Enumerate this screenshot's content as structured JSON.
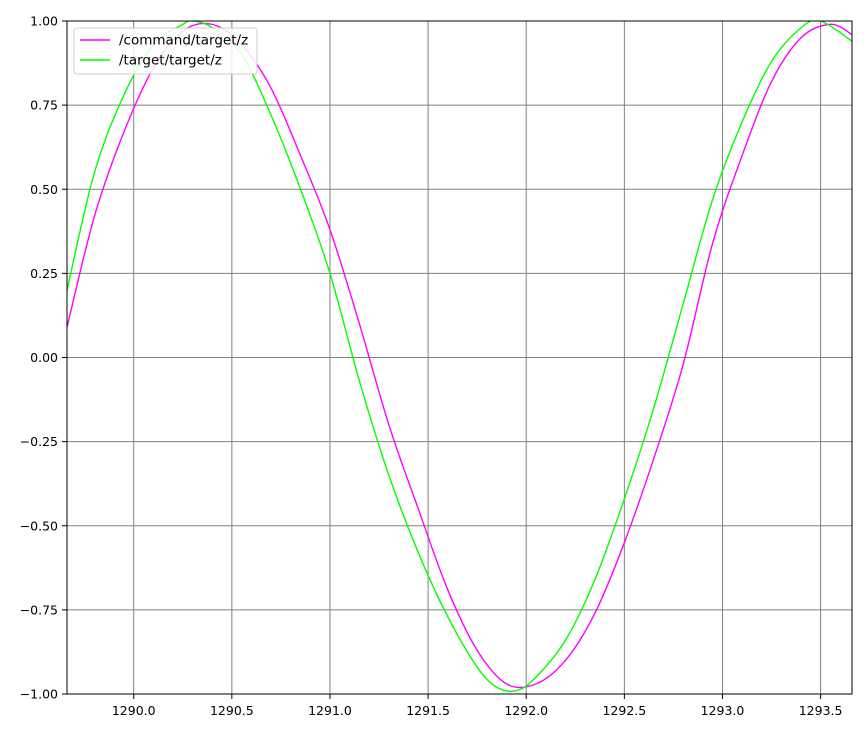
{
  "chart_data": {
    "type": "line",
    "title": "",
    "xlabel": "",
    "ylabel": "",
    "xlim": [
      1289.66,
      1293.66
    ],
    "ylim": [
      -1.0,
      1.0
    ],
    "grid": true,
    "grid_color": "#808080",
    "legend_position": "top-left",
    "x_ticks": [
      "1290.0",
      "1290.5",
      "1291.0",
      "1291.5",
      "1292.0",
      "1292.5",
      "1293.0",
      "1293.5"
    ],
    "x_tick_values": [
      1290.0,
      1290.5,
      1291.0,
      1291.5,
      1292.0,
      1292.5,
      1293.0,
      1293.5
    ],
    "y_ticks": [
      "1.00",
      "0.75",
      "0.50",
      "0.25",
      "0.00",
      "−0.25",
      "−0.50",
      "−0.75",
      "−1.00"
    ],
    "y_tick_values": [
      1.0,
      0.75,
      0.5,
      0.25,
      0.0,
      -0.25,
      -0.5,
      -0.75,
      -1.0
    ],
    "series": [
      {
        "name": "/command/target/z",
        "color": "#ff00ff",
        "x": [
          1289.66,
          1289.8,
          1289.95,
          1290.1,
          1290.25,
          1290.4,
          1290.55,
          1290.7,
          1290.85,
          1291.0,
          1291.15,
          1291.3,
          1291.45,
          1291.6,
          1291.75,
          1291.9,
          1292.05,
          1292.2,
          1292.35,
          1292.5,
          1292.65,
          1292.8,
          1292.95,
          1293.1,
          1293.25,
          1293.4,
          1293.55,
          1293.66
        ],
        "y": [
          0.09,
          0.42,
          0.67,
          0.86,
          0.97,
          0.99,
          0.93,
          0.8,
          0.6,
          0.38,
          0.1,
          -0.2,
          -0.45,
          -0.69,
          -0.87,
          -0.97,
          -0.97,
          -0.9,
          -0.76,
          -0.55,
          -0.3,
          -0.02,
          0.34,
          0.6,
          0.82,
          0.95,
          0.99,
          0.96
        ]
      },
      {
        "name": "/target/target/z",
        "color": "#00ff00",
        "x": [
          1289.66,
          1289.8,
          1289.95,
          1290.1,
          1290.25,
          1290.3,
          1290.4,
          1290.55,
          1290.7,
          1290.85,
          1291.0,
          1291.15,
          1291.3,
          1291.45,
          1291.6,
          1291.75,
          1291.85,
          1291.95,
          1292.05,
          1292.2,
          1292.35,
          1292.5,
          1292.65,
          1292.8,
          1292.95,
          1293.1,
          1293.25,
          1293.4,
          1293.5,
          1293.66
        ],
        "y": [
          0.2,
          0.55,
          0.78,
          0.93,
          0.99,
          1.0,
          0.98,
          0.9,
          0.72,
          0.5,
          0.25,
          -0.07,
          -0.35,
          -0.58,
          -0.77,
          -0.92,
          -0.98,
          -0.99,
          -0.95,
          -0.84,
          -0.66,
          -0.42,
          -0.15,
          0.16,
          0.47,
          0.7,
          0.88,
          0.98,
          1.0,
          0.94
        ]
      }
    ]
  }
}
